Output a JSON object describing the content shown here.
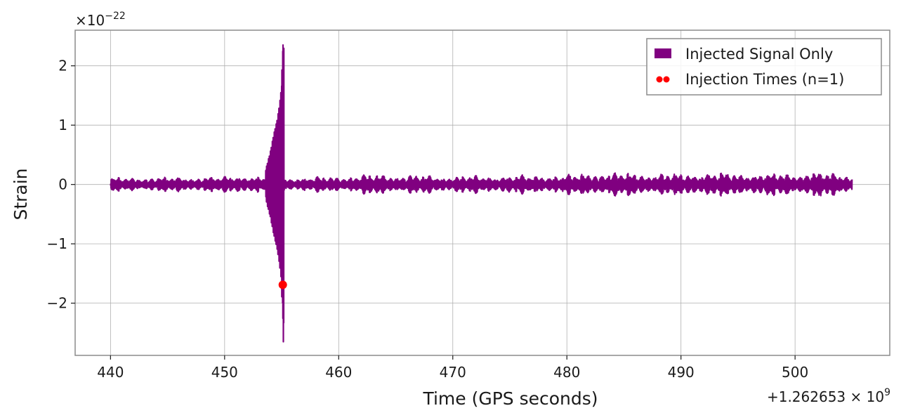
{
  "chart_data": {
    "type": "line",
    "title": "",
    "xlabel": "Time (GPS seconds)",
    "ylabel": "Strain",
    "x_offset": {
      "prefix": "+1.262653 × 10",
      "exponent": "9"
    },
    "y_multiplier": {
      "prefix": "×10",
      "exponent": "−22"
    },
    "xlim": [
      436.9,
      508.3
    ],
    "ylim": [
      -2.88,
      2.6
    ],
    "xticks": [
      440,
      450,
      460,
      470,
      480,
      490,
      500
    ],
    "xtick_labels": [
      "440",
      "450",
      "460",
      "470",
      "480",
      "490",
      "500"
    ],
    "yticks": [
      -2,
      -1,
      0,
      1,
      2
    ],
    "ytick_labels": [
      "−2",
      "−1",
      "0",
      "1",
      "2"
    ],
    "grid": true,
    "legend_position": "top-right",
    "series": [
      {
        "name": "Injected Signal Only",
        "kind": "line",
        "color": "#800080",
        "x_range": [
          440,
          505
        ],
        "noise_envelope": [
          [
            440,
            0.12
          ],
          [
            445,
            0.13
          ],
          [
            450,
            0.14
          ],
          [
            451.5,
            0.18
          ],
          [
            452.5,
            0.15
          ],
          [
            455.1,
            0.12
          ],
          [
            460,
            0.14
          ],
          [
            463,
            0.18
          ],
          [
            470,
            0.15
          ],
          [
            480,
            0.17
          ],
          [
            482.5,
            0.22
          ],
          [
            490,
            0.19
          ],
          [
            492,
            0.22
          ],
          [
            495,
            0.2
          ],
          [
            500,
            0.2
          ],
          [
            501.5,
            0.23
          ],
          [
            505,
            0.18
          ]
        ],
        "chirp_envelope": [
          [
            453.6,
            0.25
          ],
          [
            454.0,
            0.55
          ],
          [
            454.3,
            0.85
          ],
          [
            454.6,
            1.1
          ],
          [
            454.8,
            1.35
          ],
          [
            454.95,
            1.6
          ],
          [
            455.05,
            2.1
          ],
          [
            455.12,
            2.35
          ],
          [
            455.15,
            -2.65
          ],
          [
            455.2,
            0.0
          ]
        ]
      },
      {
        "name": "Injection Times (n=1)",
        "kind": "scatter",
        "color": "#ff0000",
        "points": [
          [
            455.1,
            -1.69
          ]
        ]
      }
    ]
  }
}
